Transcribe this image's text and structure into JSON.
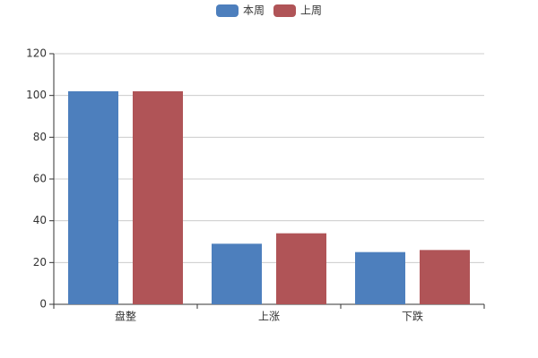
{
  "chart_data": {
    "type": "bar",
    "categories": [
      "盘整",
      "上涨",
      "下跌"
    ],
    "series": [
      {
        "name": "本周",
        "color": "#4d7fbd",
        "values": [
          102,
          29,
          25
        ]
      },
      {
        "name": "上周",
        "color": "#b05457",
        "values": [
          102,
          34,
          26
        ]
      }
    ],
    "ylim": [
      0,
      120
    ],
    "yticks": [
      0,
      20,
      40,
      60,
      80,
      100,
      120
    ],
    "grid": true,
    "legend": "top"
  }
}
